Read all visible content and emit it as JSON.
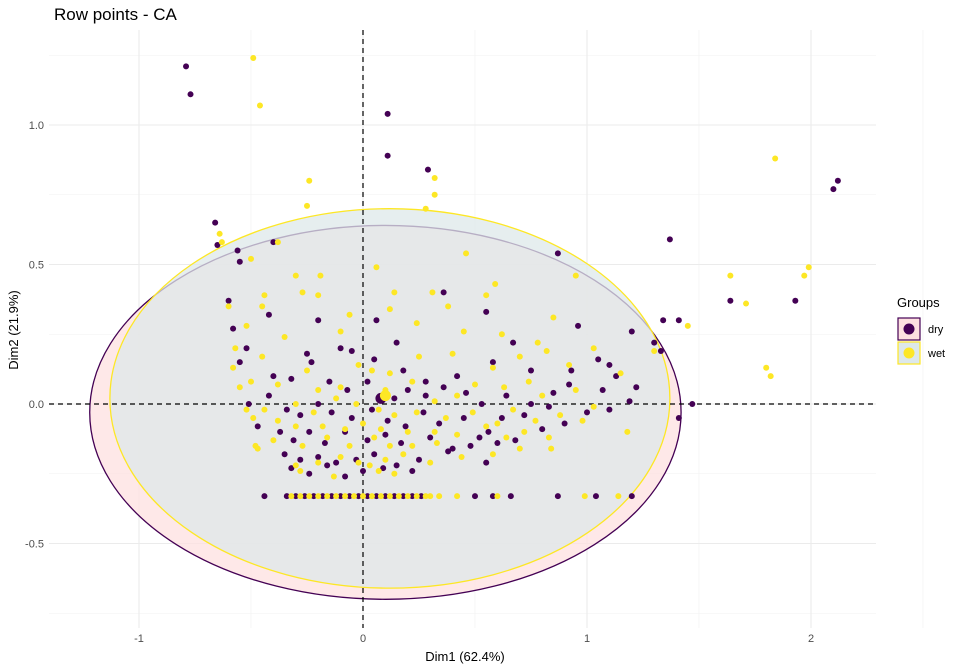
{
  "chart_data": {
    "type": "scatter",
    "title": "Row points - CA",
    "xlabel": "Dim1 (62.4%)",
    "ylabel": "Dim2 (21.9%)",
    "xlim": [
      -1.4,
      2.3
    ],
    "ylim": [
      -0.75,
      1.3
    ],
    "xticks": [
      {
        "v": -1,
        "label": "-1"
      },
      {
        "v": 0,
        "label": "0"
      },
      {
        "v": 1,
        "label": "1"
      },
      {
        "v": 2,
        "label": "2"
      }
    ],
    "yticks": [
      {
        "v": -0.5,
        "label": "-0.5"
      },
      {
        "v": 0,
        "label": "0.0"
      },
      {
        "v": 0.5,
        "label": "0.5"
      },
      {
        "v": 1,
        "label": "1.0"
      }
    ],
    "grid": true,
    "reference_lines": {
      "x": 0,
      "y": 0,
      "style": "dashed"
    },
    "legend": {
      "title": "Groups",
      "position": "right"
    },
    "series": [
      {
        "name": "dry",
        "color": "#440154",
        "ellipse_fill": "#fde0e0",
        "ellipse": {
          "cx": 0.1,
          "cy": -0.03,
          "rx": 1.32,
          "ry": 0.67,
          "angle_deg": 0
        },
        "centroid": [
          0.08,
          0.02
        ],
        "points": [
          [
            -0.79,
            1.21
          ],
          [
            -0.77,
            1.11
          ],
          [
            0.11,
            1.04
          ],
          [
            0.11,
            0.89
          ],
          [
            0.29,
            0.84
          ],
          [
            2.12,
            0.8
          ],
          [
            2.1,
            0.77
          ],
          [
            -0.66,
            0.65
          ],
          [
            -0.65,
            0.57
          ],
          [
            -0.56,
            0.55
          ],
          [
            -0.4,
            0.58
          ],
          [
            -0.55,
            0.51
          ],
          [
            0.36,
            0.4
          ],
          [
            1.37,
            0.59
          ],
          [
            0.87,
            0.54
          ],
          [
            -0.6,
            0.37
          ],
          [
            1.64,
            0.37
          ],
          [
            1.93,
            0.37
          ],
          [
            -0.2,
            0.3
          ],
          [
            0.06,
            0.3
          ],
          [
            -0.1,
            0.2
          ],
          [
            0.15,
            0.22
          ],
          [
            -0.58,
            0.27
          ],
          [
            -0.42,
            0.32
          ],
          [
            0.55,
            0.33
          ],
          [
            0.96,
            0.28
          ],
          [
            1.2,
            0.26
          ],
          [
            1.34,
            0.3
          ],
          [
            1.41,
            0.3
          ],
          [
            1.3,
            0.22
          ],
          [
            1.33,
            0.19
          ],
          [
            0.67,
            0.22
          ],
          [
            -0.52,
            0.2
          ],
          [
            -0.25,
            0.18
          ],
          [
            -0.05,
            0.19
          ],
          [
            0.05,
            0.16
          ],
          [
            0.18,
            0.12
          ],
          [
            0.28,
            0.08
          ],
          [
            0.42,
            0.1
          ],
          [
            0.58,
            0.15
          ],
          [
            0.75,
            0.12
          ],
          [
            0.93,
            0.12
          ],
          [
            1.05,
            0.16
          ],
          [
            1.1,
            0.14
          ],
          [
            1.13,
            0.1
          ],
          [
            1.22,
            0.06
          ],
          [
            -0.55,
            0.15
          ],
          [
            -0.4,
            0.1
          ],
          [
            -0.32,
            0.09
          ],
          [
            -0.23,
            0.15
          ],
          [
            -0.15,
            0.08
          ],
          [
            -0.07,
            0.05
          ],
          [
            0.02,
            0.08
          ],
          [
            0.14,
            0.02
          ],
          [
            0.2,
            0.05
          ],
          [
            0.28,
            0.03
          ],
          [
            0.36,
            0.06
          ],
          [
            0.46,
            0.04
          ],
          [
            0.53,
            0.0
          ],
          [
            0.64,
            0.03
          ],
          [
            0.75,
            0.0
          ],
          [
            0.85,
            0.04
          ],
          [
            0.92,
            0.07
          ],
          [
            1.07,
            0.05
          ],
          [
            1.19,
            0.01
          ],
          [
            1.47,
            0.0
          ],
          [
            1.41,
            -0.05
          ],
          [
            -0.51,
            0.0
          ],
          [
            -0.42,
            0.03
          ],
          [
            -0.34,
            -0.02
          ],
          [
            -0.28,
            -0.04
          ],
          [
            -0.2,
            0.0
          ],
          [
            -0.14,
            -0.03
          ],
          [
            -0.05,
            -0.05
          ],
          [
            0.04,
            -0.02
          ],
          [
            0.11,
            -0.06
          ],
          [
            0.19,
            -0.08
          ],
          [
            0.27,
            -0.03
          ],
          [
            0.34,
            -0.07
          ],
          [
            0.45,
            -0.05
          ],
          [
            0.56,
            -0.1
          ],
          [
            0.62,
            -0.05
          ],
          [
            0.72,
            -0.04
          ],
          [
            0.83,
            -0.01
          ],
          [
            0.9,
            -0.07
          ],
          [
            1.0,
            -0.03
          ],
          [
            1.1,
            -0.02
          ],
          [
            -0.47,
            -0.08
          ],
          [
            -0.37,
            -0.1
          ],
          [
            -0.31,
            -0.13
          ],
          [
            -0.24,
            -0.1
          ],
          [
            -0.17,
            -0.14
          ],
          [
            -0.08,
            -0.1
          ],
          [
            0.02,
            -0.13
          ],
          [
            0.1,
            -0.11
          ],
          [
            0.17,
            -0.14
          ],
          [
            0.3,
            -0.12
          ],
          [
            0.4,
            -0.16
          ],
          [
            0.52,
            -0.12
          ],
          [
            0.6,
            -0.14
          ],
          [
            0.68,
            -0.13
          ],
          [
            0.8,
            -0.09
          ],
          [
            -0.35,
            -0.18
          ],
          [
            -0.28,
            -0.2
          ],
          [
            -0.2,
            -0.19
          ],
          [
            -0.12,
            -0.21
          ],
          [
            -0.03,
            -0.2
          ],
          [
            0.05,
            -0.18
          ],
          [
            0.15,
            -0.22
          ],
          [
            0.25,
            -0.2
          ],
          [
            0.38,
            -0.17
          ],
          [
            0.48,
            -0.15
          ],
          [
            0.55,
            -0.21
          ],
          [
            -0.32,
            -0.23
          ],
          [
            -0.24,
            -0.25
          ],
          [
            -0.16,
            -0.22
          ],
          [
            -0.08,
            -0.26
          ],
          [
            0.0,
            -0.24
          ],
          [
            0.09,
            -0.23
          ],
          [
            0.22,
            -0.24
          ],
          [
            -0.44,
            -0.33
          ],
          [
            -0.34,
            -0.33
          ],
          [
            -0.3,
            -0.33
          ],
          [
            -0.26,
            -0.33
          ],
          [
            -0.22,
            -0.33
          ],
          [
            -0.18,
            -0.33
          ],
          [
            -0.14,
            -0.33
          ],
          [
            -0.1,
            -0.33
          ],
          [
            -0.06,
            -0.33
          ],
          [
            -0.02,
            -0.33
          ],
          [
            0.02,
            -0.33
          ],
          [
            0.06,
            -0.33
          ],
          [
            0.1,
            -0.33
          ],
          [
            0.14,
            -0.33
          ],
          [
            0.18,
            -0.33
          ],
          [
            0.22,
            -0.33
          ],
          [
            0.26,
            -0.33
          ],
          [
            0.5,
            -0.33
          ],
          [
            0.58,
            -0.33
          ],
          [
            0.66,
            -0.33
          ],
          [
            0.87,
            -0.33
          ],
          [
            1.04,
            -0.33
          ],
          [
            1.2,
            -0.33
          ]
        ]
      },
      {
        "name": "wet",
        "color": "#fde725",
        "ellipse_fill": "#dde8ea",
        "ellipse": {
          "cx": 0.12,
          "cy": 0.02,
          "rx": 1.25,
          "ry": 0.68,
          "angle_deg": 0
        },
        "centroid": [
          0.1,
          0.03
        ],
        "points": [
          [
            -0.49,
            1.24
          ],
          [
            -0.46,
            1.07
          ],
          [
            -0.24,
            0.8
          ],
          [
            1.84,
            0.88
          ],
          [
            0.32,
            0.81
          ],
          [
            0.32,
            0.75
          ],
          [
            -0.25,
            0.71
          ],
          [
            0.28,
            0.7
          ],
          [
            -0.64,
            0.61
          ],
          [
            -0.63,
            0.58
          ],
          [
            -0.38,
            0.58
          ],
          [
            0.46,
            0.54
          ],
          [
            -0.5,
            0.52
          ],
          [
            1.64,
            0.46
          ],
          [
            1.71,
            0.36
          ],
          [
            1.97,
            0.46
          ],
          [
            1.99,
            0.49
          ],
          [
            -0.3,
            0.46
          ],
          [
            -0.19,
            0.46
          ],
          [
            0.06,
            0.49
          ],
          [
            0.59,
            0.43
          ],
          [
            0.95,
            0.46
          ],
          [
            1.45,
            0.28
          ],
          [
            -0.44,
            0.39
          ],
          [
            -0.27,
            0.4
          ],
          [
            -0.2,
            0.39
          ],
          [
            0.14,
            0.4
          ],
          [
            0.31,
            0.4
          ],
          [
            0.55,
            0.39
          ],
          [
            -0.6,
            0.35
          ],
          [
            -0.45,
            0.35
          ],
          [
            -0.06,
            0.32
          ],
          [
            0.12,
            0.34
          ],
          [
            0.38,
            0.35
          ],
          [
            0.85,
            0.31
          ],
          [
            -0.52,
            0.28
          ],
          [
            -0.35,
            0.24
          ],
          [
            -0.1,
            0.26
          ],
          [
            0.24,
            0.29
          ],
          [
            0.45,
            0.26
          ],
          [
            0.62,
            0.25
          ],
          [
            0.78,
            0.22
          ],
          [
            1.03,
            0.2
          ],
          [
            1.3,
            0.19
          ],
          [
            -0.57,
            0.2
          ],
          [
            -0.45,
            0.17
          ],
          [
            -0.25,
            0.12
          ],
          [
            -0.02,
            0.14
          ],
          [
            0.12,
            0.11
          ],
          [
            0.25,
            0.17
          ],
          [
            0.4,
            0.18
          ],
          [
            0.58,
            0.13
          ],
          [
            0.7,
            0.17
          ],
          [
            0.82,
            0.19
          ],
          [
            0.92,
            0.14
          ],
          [
            1.15,
            0.11
          ],
          [
            -0.58,
            0.13
          ],
          [
            -0.5,
            0.08
          ],
          [
            -0.38,
            0.07
          ],
          [
            -0.2,
            0.05
          ],
          [
            -0.1,
            0.06
          ],
          [
            0.04,
            0.12
          ],
          [
            0.1,
            0.05
          ],
          [
            0.22,
            0.08
          ],
          [
            0.32,
            0.01
          ],
          [
            0.42,
            0.03
          ],
          [
            0.5,
            0.07
          ],
          [
            0.63,
            0.06
          ],
          [
            0.74,
            0.08
          ],
          [
            0.8,
            0.03
          ],
          [
            0.95,
            0.05
          ],
          [
            1.03,
            -0.01
          ],
          [
            -0.55,
            0.06
          ],
          [
            -0.52,
            -0.02
          ],
          [
            -0.44,
            -0.02
          ],
          [
            -0.3,
            0.0
          ],
          [
            -0.22,
            -0.03
          ],
          [
            -0.12,
            0.02
          ],
          [
            -0.03,
            0.0
          ],
          [
            0.07,
            -0.02
          ],
          [
            0.14,
            -0.04
          ],
          [
            0.24,
            -0.03
          ],
          [
            0.37,
            -0.05
          ],
          [
            0.49,
            -0.03
          ],
          [
            0.6,
            -0.07
          ],
          [
            0.67,
            -0.02
          ],
          [
            0.77,
            -0.06
          ],
          [
            0.88,
            -0.04
          ],
          [
            0.98,
            -0.06
          ],
          [
            1.18,
            -0.1
          ],
          [
            -0.49,
            -0.05
          ],
          [
            -0.38,
            -0.06
          ],
          [
            -0.3,
            -0.08
          ],
          [
            -0.18,
            -0.08
          ],
          [
            -0.08,
            -0.09
          ],
          [
            0.0,
            -0.07
          ],
          [
            0.08,
            -0.09
          ],
          [
            0.2,
            -0.1
          ],
          [
            0.32,
            -0.1
          ],
          [
            0.42,
            -0.11
          ],
          [
            0.55,
            -0.08
          ],
          [
            0.64,
            -0.12
          ],
          [
            0.72,
            -0.1
          ],
          [
            0.83,
            -0.12
          ],
          [
            -0.48,
            -0.15
          ],
          [
            -0.4,
            -0.13
          ],
          [
            -0.27,
            -0.15
          ],
          [
            -0.16,
            -0.12
          ],
          [
            -0.06,
            -0.15
          ],
          [
            0.05,
            -0.12
          ],
          [
            0.12,
            -0.15
          ],
          [
            0.22,
            -0.15
          ],
          [
            0.33,
            -0.14
          ],
          [
            0.44,
            -0.19
          ],
          [
            0.58,
            -0.18
          ],
          [
            0.7,
            -0.16
          ],
          [
            0.84,
            -0.16
          ],
          [
            -0.47,
            -0.16
          ],
          [
            -0.3,
            -0.22
          ],
          [
            -0.2,
            -0.21
          ],
          [
            -0.1,
            -0.19
          ],
          [
            0.03,
            -0.22
          ],
          [
            0.1,
            -0.2
          ],
          [
            0.18,
            -0.18
          ],
          [
            0.3,
            -0.21
          ],
          [
            -0.28,
            -0.24
          ],
          [
            -0.13,
            -0.26
          ],
          [
            -0.02,
            -0.21
          ],
          [
            0.07,
            -0.24
          ],
          [
            0.14,
            -0.25
          ],
          [
            -0.32,
            -0.33
          ],
          [
            -0.28,
            -0.33
          ],
          [
            -0.24,
            -0.33
          ],
          [
            -0.2,
            -0.33
          ],
          [
            -0.16,
            -0.33
          ],
          [
            -0.12,
            -0.33
          ],
          [
            -0.08,
            -0.33
          ],
          [
            -0.04,
            -0.33
          ],
          [
            0.0,
            -0.33
          ],
          [
            0.04,
            -0.33
          ],
          [
            0.08,
            -0.33
          ],
          [
            0.12,
            -0.33
          ],
          [
            0.16,
            -0.33
          ],
          [
            0.2,
            -0.33
          ],
          [
            0.24,
            -0.33
          ],
          [
            0.28,
            -0.33
          ],
          [
            0.3,
            -0.33
          ],
          [
            0.34,
            -0.33
          ],
          [
            0.42,
            -0.33
          ],
          [
            0.6,
            -0.33
          ],
          [
            0.99,
            -0.33
          ],
          [
            1.14,
            -0.33
          ],
          [
            1.8,
            0.13
          ],
          [
            1.82,
            0.1
          ]
        ]
      }
    ]
  }
}
